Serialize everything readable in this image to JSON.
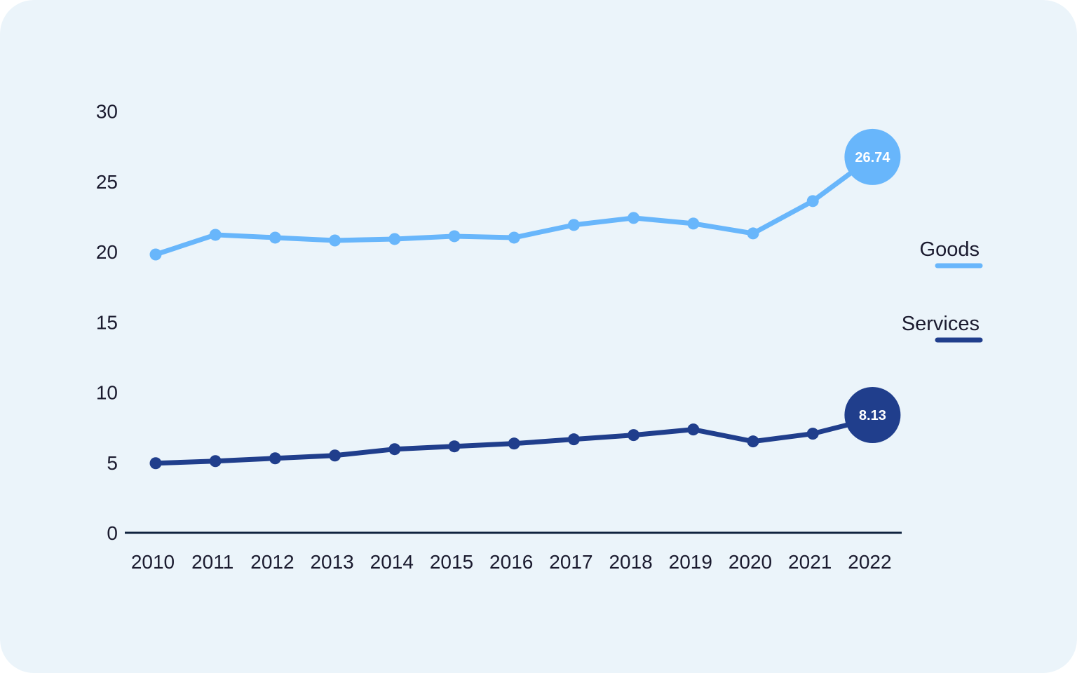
{
  "colors": {
    "background": "#ebf4fa",
    "axis": "#10233f",
    "goods": "#68b6fb",
    "services": "#203e8c"
  },
  "chart_data": {
    "type": "line",
    "x": [
      "2010",
      "2011",
      "2012",
      "2013",
      "2014",
      "2015",
      "2016",
      "2017",
      "2018",
      "2019",
      "2020",
      "2021",
      "2022"
    ],
    "series": [
      {
        "name": "Goods",
        "values": [
          19.8,
          21.2,
          21.0,
          20.8,
          20.9,
          21.1,
          21.0,
          21.9,
          22.4,
          22.0,
          21.3,
          23.6,
          26.74
        ],
        "end_label": "26.74"
      },
      {
        "name": "Services",
        "values": [
          4.95,
          5.1,
          5.3,
          5.5,
          5.95,
          6.15,
          6.35,
          6.65,
          6.95,
          7.35,
          6.5,
          7.05,
          8.13
        ],
        "end_label": "8.13"
      }
    ],
    "yticks": [
      "0",
      "5",
      "10",
      "15",
      "20",
      "25",
      "30"
    ],
    "ylim": [
      0,
      30
    ],
    "grid": false,
    "legend": {
      "placement": "right",
      "entries": [
        "Goods",
        "Services"
      ]
    }
  }
}
